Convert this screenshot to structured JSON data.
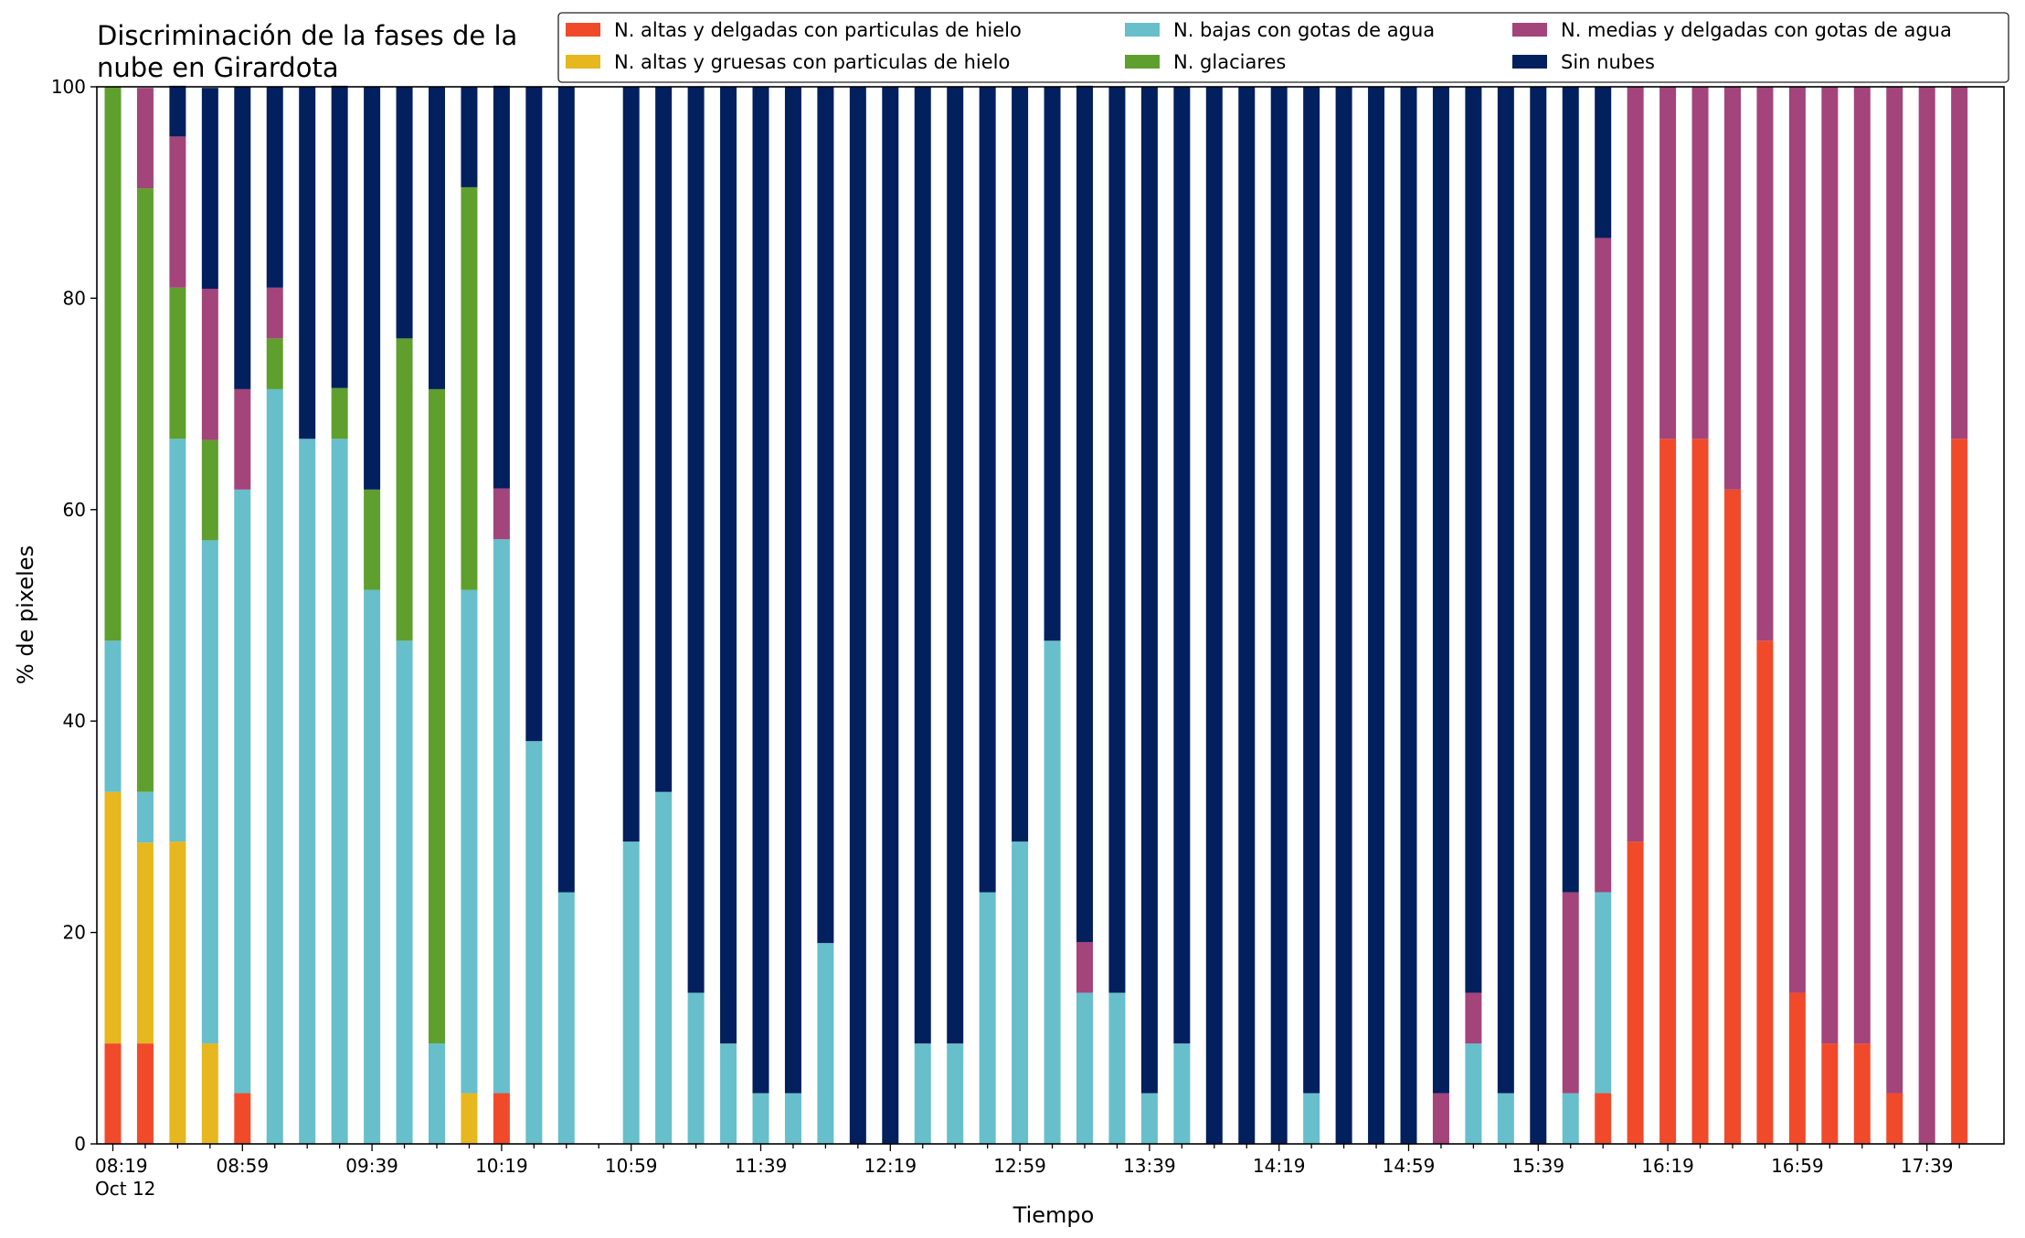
{
  "chart_data": {
    "type": "bar",
    "stacked": true,
    "title_lines": [
      "Discriminación de la fases de la",
      "nube en Girardota"
    ],
    "xlabel": "Tiempo",
    "ylabel": "% de pixeles",
    "ylim": [
      0,
      100
    ],
    "yticks": [
      0,
      20,
      40,
      60,
      80,
      100
    ],
    "x_start": "08:19",
    "x_step_minutes": 10,
    "x_count": 58,
    "xticks": [
      {
        "index": 0,
        "label": "08:19",
        "sublabel": "Oct 12"
      },
      {
        "index": 4,
        "label": "08:59"
      },
      {
        "index": 8,
        "label": "09:39"
      },
      {
        "index": 12,
        "label": "10:19"
      },
      {
        "index": 16,
        "label": "10:59"
      },
      {
        "index": 20,
        "label": "11:39"
      },
      {
        "index": 24,
        "label": "12:19"
      },
      {
        "index": 28,
        "label": "12:59"
      },
      {
        "index": 32,
        "label": "13:39"
      },
      {
        "index": 36,
        "label": "14:19"
      },
      {
        "index": 40,
        "label": "14:59"
      },
      {
        "index": 44,
        "label": "15:39"
      },
      {
        "index": 48,
        "label": "16:19"
      },
      {
        "index": 52,
        "label": "16:59"
      },
      {
        "index": 56,
        "label": "17:39"
      }
    ],
    "grid": false,
    "legend_position": "top",
    "legend_columns": 3,
    "series": [
      {
        "name": "N. altas y delgadas con particulas de hielo",
        "key": "hielo_delgadas",
        "color": "#f04a2b"
      },
      {
        "name": "N. altas y gruesas con particulas de hielo",
        "key": "hielo_gruesas",
        "color": "#e6b71e"
      },
      {
        "name": "N. bajas con gotas de agua",
        "key": "bajas",
        "color": "#66bfcb"
      },
      {
        "name": "N. glaciares",
        "key": "glaciares",
        "color": "#5f9f2e"
      },
      {
        "name": "N. medias y delgadas con gotas de agua",
        "key": "medias",
        "color": "#a3447b"
      },
      {
        "name": "Sin nubes",
        "key": "sin_nubes",
        "color": "#021f5e"
      }
    ],
    "stack_order": [
      "hielo_delgadas",
      "hielo_gruesas",
      "bajas",
      "glaciares",
      "medias",
      "sin_nubes"
    ],
    "bars": [
      {
        "time": "08:19",
        "hielo_delgadas": 9.5,
        "hielo_gruesas": 23.8,
        "bajas": 14.3,
        "glaciares": 52.4,
        "medias": 0,
        "sin_nubes": 0
      },
      {
        "time": "08:29",
        "hielo_delgadas": 9.5,
        "hielo_gruesas": 19.0,
        "bajas": 4.8,
        "glaciares": 57.1,
        "medias": 9.5,
        "sin_nubes": 0
      },
      {
        "time": "08:39",
        "hielo_delgadas": 0,
        "hielo_gruesas": 28.6,
        "bajas": 38.1,
        "glaciares": 14.3,
        "medias": 14.3,
        "sin_nubes": 4.8
      },
      {
        "time": "08:49",
        "hielo_delgadas": 0,
        "hielo_gruesas": 9.5,
        "bajas": 47.6,
        "glaciares": 9.5,
        "medias": 14.3,
        "sin_nubes": 19.0
      },
      {
        "time": "08:59",
        "hielo_delgadas": 4.8,
        "hielo_gruesas": 0,
        "bajas": 57.1,
        "glaciares": 0,
        "medias": 9.5,
        "sin_nubes": 28.6
      },
      {
        "time": "09:09",
        "hielo_delgadas": 0,
        "hielo_gruesas": 0,
        "bajas": 71.4,
        "glaciares": 4.8,
        "medias": 4.8,
        "sin_nubes": 19.0
      },
      {
        "time": "09:19",
        "hielo_delgadas": 0,
        "hielo_gruesas": 0,
        "bajas": 66.7,
        "glaciares": 0,
        "medias": 0,
        "sin_nubes": 33.3
      },
      {
        "time": "09:29",
        "hielo_delgadas": 0,
        "hielo_gruesas": 0,
        "bajas": 66.7,
        "glaciares": 4.8,
        "medias": 0,
        "sin_nubes": 28.6
      },
      {
        "time": "09:39",
        "hielo_delgadas": 0,
        "hielo_gruesas": 0,
        "bajas": 52.4,
        "glaciares": 9.5,
        "medias": 0,
        "sin_nubes": 38.1
      },
      {
        "time": "09:49",
        "hielo_delgadas": 0,
        "hielo_gruesas": 0,
        "bajas": 47.6,
        "glaciares": 28.6,
        "medias": 0,
        "sin_nubes": 23.8
      },
      {
        "time": "09:59",
        "hielo_delgadas": 0,
        "hielo_gruesas": 0,
        "bajas": 9.5,
        "glaciares": 61.9,
        "medias": 0,
        "sin_nubes": 28.6
      },
      {
        "time": "10:09",
        "hielo_delgadas": 0,
        "hielo_gruesas": 4.8,
        "bajas": 47.6,
        "glaciares": 38.1,
        "medias": 0,
        "sin_nubes": 9.5
      },
      {
        "time": "10:19",
        "hielo_delgadas": 4.8,
        "hielo_gruesas": 0,
        "bajas": 52.4,
        "glaciares": 0,
        "medias": 4.8,
        "sin_nubes": 38.1
      },
      {
        "time": "10:29",
        "hielo_delgadas": 0,
        "hielo_gruesas": 0,
        "bajas": 38.1,
        "glaciares": 0,
        "medias": 0,
        "sin_nubes": 61.9
      },
      {
        "time": "10:39",
        "hielo_delgadas": 0,
        "hielo_gruesas": 0,
        "bajas": 23.8,
        "glaciares": 0,
        "medias": 0,
        "sin_nubes": 76.2
      },
      {
        "time": "10:49",
        "hielo_delgadas": 0,
        "hielo_gruesas": 0,
        "bajas": 0,
        "glaciares": 0,
        "medias": 0,
        "sin_nubes": 0
      },
      {
        "time": "10:59",
        "hielo_delgadas": 0,
        "hielo_gruesas": 0,
        "bajas": 28.6,
        "glaciares": 0,
        "medias": 0,
        "sin_nubes": 71.4
      },
      {
        "time": "11:09",
        "hielo_delgadas": 0,
        "hielo_gruesas": 0,
        "bajas": 33.3,
        "glaciares": 0,
        "medias": 0,
        "sin_nubes": 66.7
      },
      {
        "time": "11:19",
        "hielo_delgadas": 0,
        "hielo_gruesas": 0,
        "bajas": 14.3,
        "glaciares": 0,
        "medias": 0,
        "sin_nubes": 85.7
      },
      {
        "time": "11:29",
        "hielo_delgadas": 0,
        "hielo_gruesas": 0,
        "bajas": 9.5,
        "glaciares": 0,
        "medias": 0,
        "sin_nubes": 90.5
      },
      {
        "time": "11:39",
        "hielo_delgadas": 0,
        "hielo_gruesas": 0,
        "bajas": 4.8,
        "glaciares": 0,
        "medias": 0,
        "sin_nubes": 95.2
      },
      {
        "time": "11:49",
        "hielo_delgadas": 0,
        "hielo_gruesas": 0,
        "bajas": 4.8,
        "glaciares": 0,
        "medias": 0,
        "sin_nubes": 95.2
      },
      {
        "time": "11:59",
        "hielo_delgadas": 0,
        "hielo_gruesas": 0,
        "bajas": 19.0,
        "glaciares": 0,
        "medias": 0,
        "sin_nubes": 81.0
      },
      {
        "time": "12:09",
        "hielo_delgadas": 0,
        "hielo_gruesas": 0,
        "bajas": 0,
        "glaciares": 0,
        "medias": 0,
        "sin_nubes": 100
      },
      {
        "time": "12:19",
        "hielo_delgadas": 0,
        "hielo_gruesas": 0,
        "bajas": 0,
        "glaciares": 0,
        "medias": 0,
        "sin_nubes": 100
      },
      {
        "time": "12:29",
        "hielo_delgadas": 0,
        "hielo_gruesas": 0,
        "bajas": 9.5,
        "glaciares": 0,
        "medias": 0,
        "sin_nubes": 90.5
      },
      {
        "time": "12:39",
        "hielo_delgadas": 0,
        "hielo_gruesas": 0,
        "bajas": 9.5,
        "glaciares": 0,
        "medias": 0,
        "sin_nubes": 90.5
      },
      {
        "time": "12:49",
        "hielo_delgadas": 0,
        "hielo_gruesas": 0,
        "bajas": 23.8,
        "glaciares": 0,
        "medias": 0,
        "sin_nubes": 76.2
      },
      {
        "time": "12:59",
        "hielo_delgadas": 0,
        "hielo_gruesas": 0,
        "bajas": 28.6,
        "glaciares": 0,
        "medias": 0,
        "sin_nubes": 71.4
      },
      {
        "time": "13:09",
        "hielo_delgadas": 0,
        "hielo_gruesas": 0,
        "bajas": 47.6,
        "glaciares": 0,
        "medias": 0,
        "sin_nubes": 52.4
      },
      {
        "time": "13:19",
        "hielo_delgadas": 0,
        "hielo_gruesas": 0,
        "bajas": 14.3,
        "glaciares": 0,
        "medias": 4.8,
        "sin_nubes": 81.0
      },
      {
        "time": "13:29",
        "hielo_delgadas": 0,
        "hielo_gruesas": 0,
        "bajas": 14.3,
        "glaciares": 0,
        "medias": 0,
        "sin_nubes": 85.7
      },
      {
        "time": "13:39",
        "hielo_delgadas": 0,
        "hielo_gruesas": 0,
        "bajas": 4.8,
        "glaciares": 0,
        "medias": 0,
        "sin_nubes": 95.2
      },
      {
        "time": "13:49",
        "hielo_delgadas": 0,
        "hielo_gruesas": 0,
        "bajas": 9.5,
        "glaciares": 0,
        "medias": 0,
        "sin_nubes": 90.5
      },
      {
        "time": "13:59",
        "hielo_delgadas": 0,
        "hielo_gruesas": 0,
        "bajas": 0,
        "glaciares": 0,
        "medias": 0,
        "sin_nubes": 100
      },
      {
        "time": "14:09",
        "hielo_delgadas": 0,
        "hielo_gruesas": 0,
        "bajas": 0,
        "glaciares": 0,
        "medias": 0,
        "sin_nubes": 100
      },
      {
        "time": "14:19",
        "hielo_delgadas": 0,
        "hielo_gruesas": 0,
        "bajas": 0,
        "glaciares": 0,
        "medias": 0,
        "sin_nubes": 100
      },
      {
        "time": "14:29",
        "hielo_delgadas": 0,
        "hielo_gruesas": 0,
        "bajas": 4.8,
        "glaciares": 0,
        "medias": 0,
        "sin_nubes": 95.2
      },
      {
        "time": "14:39",
        "hielo_delgadas": 0,
        "hielo_gruesas": 0,
        "bajas": 0,
        "glaciares": 0,
        "medias": 0,
        "sin_nubes": 100
      },
      {
        "time": "14:49",
        "hielo_delgadas": 0,
        "hielo_gruesas": 0,
        "bajas": 0,
        "glaciares": 0,
        "medias": 0,
        "sin_nubes": 100
      },
      {
        "time": "14:59",
        "hielo_delgadas": 0,
        "hielo_gruesas": 0,
        "bajas": 0,
        "glaciares": 0,
        "medias": 0,
        "sin_nubes": 100
      },
      {
        "time": "15:09",
        "hielo_delgadas": 0,
        "hielo_gruesas": 0,
        "bajas": 0,
        "glaciares": 0,
        "medias": 4.8,
        "sin_nubes": 95.2
      },
      {
        "time": "15:19",
        "hielo_delgadas": 0,
        "hielo_gruesas": 0,
        "bajas": 9.5,
        "glaciares": 0,
        "medias": 4.8,
        "sin_nubes": 85.7
      },
      {
        "time": "15:29",
        "hielo_delgadas": 0,
        "hielo_gruesas": 0,
        "bajas": 4.8,
        "glaciares": 0,
        "medias": 0,
        "sin_nubes": 95.2
      },
      {
        "time": "15:39",
        "hielo_delgadas": 0,
        "hielo_gruesas": 0,
        "bajas": 0,
        "glaciares": 0,
        "medias": 0,
        "sin_nubes": 100
      },
      {
        "time": "15:49",
        "hielo_delgadas": 0,
        "hielo_gruesas": 0,
        "bajas": 4.8,
        "glaciares": 0,
        "medias": 19.0,
        "sin_nubes": 76.2
      },
      {
        "time": "15:59",
        "hielo_delgadas": 4.8,
        "hielo_gruesas": 0,
        "bajas": 19.0,
        "glaciares": 0,
        "medias": 61.9,
        "sin_nubes": 14.3
      },
      {
        "time": "16:09",
        "hielo_delgadas": 28.6,
        "hielo_gruesas": 0,
        "bajas": 0,
        "glaciares": 0,
        "medias": 71.4,
        "sin_nubes": 0
      },
      {
        "time": "16:19",
        "hielo_delgadas": 66.7,
        "hielo_gruesas": 0,
        "bajas": 0,
        "glaciares": 0,
        "medias": 33.3,
        "sin_nubes": 0
      },
      {
        "time": "16:29",
        "hielo_delgadas": 66.7,
        "hielo_gruesas": 0,
        "bajas": 0,
        "glaciares": 0,
        "medias": 33.3,
        "sin_nubes": 0
      },
      {
        "time": "16:39",
        "hielo_delgadas": 61.9,
        "hielo_gruesas": 0,
        "bajas": 0,
        "glaciares": 0,
        "medias": 38.1,
        "sin_nubes": 0
      },
      {
        "time": "16:49",
        "hielo_delgadas": 47.6,
        "hielo_gruesas": 0,
        "bajas": 0,
        "glaciares": 0,
        "medias": 52.4,
        "sin_nubes": 0
      },
      {
        "time": "16:59",
        "hielo_delgadas": 14.3,
        "hielo_gruesas": 0,
        "bajas": 0,
        "glaciares": 0,
        "medias": 85.7,
        "sin_nubes": 0
      },
      {
        "time": "17:09",
        "hielo_delgadas": 9.5,
        "hielo_gruesas": 0,
        "bajas": 0,
        "glaciares": 0,
        "medias": 90.5,
        "sin_nubes": 0
      },
      {
        "time": "17:19",
        "hielo_delgadas": 9.5,
        "hielo_gruesas": 0,
        "bajas": 0,
        "glaciares": 0,
        "medias": 90.5,
        "sin_nubes": 0
      },
      {
        "time": "17:29",
        "hielo_delgadas": 4.8,
        "hielo_gruesas": 0,
        "bajas": 0,
        "glaciares": 0,
        "medias": 95.2,
        "sin_nubes": 0
      },
      {
        "time": "17:39",
        "hielo_delgadas": 0,
        "hielo_gruesas": 0,
        "bajas": 0,
        "glaciares": 0,
        "medias": 100,
        "sin_nubes": 0
      },
      {
        "time": "17:49",
        "hielo_delgadas": 66.7,
        "hielo_gruesas": 0,
        "bajas": 0,
        "glaciares": 0,
        "medias": 33.3,
        "sin_nubes": 0
      }
    ]
  }
}
